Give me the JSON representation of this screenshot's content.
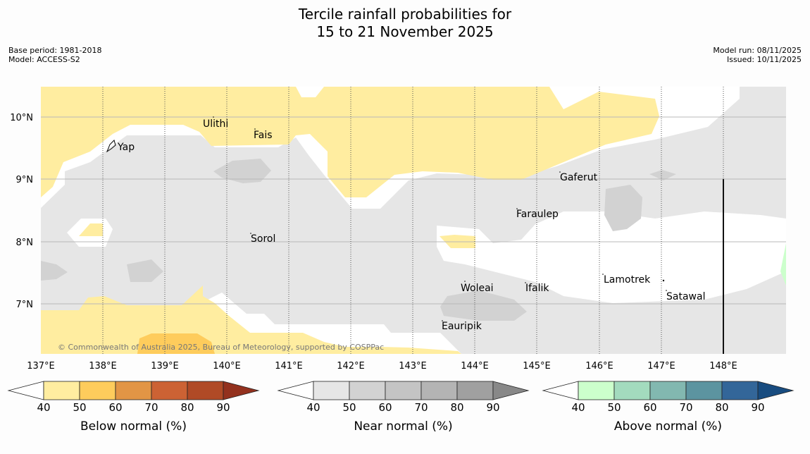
{
  "title": {
    "line1": "Tercile rainfall probabilities for",
    "line2": "15 to 21 November 2025"
  },
  "meta_left": {
    "base_period": "Base period: 1981-2018",
    "model": "Model: ACCESS-S2"
  },
  "meta_right": {
    "model_run": "Model run: 08/11/2025",
    "issued": "Issued: 10/11/2025"
  },
  "map": {
    "lon_labels": [
      "137°E",
      "138°E",
      "139°E",
      "140°E",
      "141°E",
      "142°E",
      "143°E",
      "144°E",
      "145°E",
      "146°E",
      "147°E",
      "148°E"
    ],
    "lat_labels": [
      "10°N",
      "9°N",
      "8°N",
      "7°N"
    ],
    "places": [
      "Ulithi",
      "Fais",
      "Yap",
      "Gaferut",
      "Faraulep",
      "Sorol",
      "Lamotrek",
      "Woleai",
      "Ifalik",
      "Satawal",
      "Eauripik"
    ],
    "copyright": "© Commonwealth of Australia 2025, Bureau of Meteorology, supported by COSPPac"
  },
  "colors": {
    "below": [
      "#ffeda0",
      "#fecc5c",
      "#e29545",
      "#cc6234",
      "#b04a26",
      "#93311e"
    ],
    "near": [
      "#e6e6e6",
      "#d2d2d2",
      "#c4c4c4",
      "#b4b4b4",
      "#a0a0a0",
      "#888888"
    ],
    "above": [
      "#ccffcc",
      "#a3dbbe",
      "#82b8b0",
      "#5c94a0",
      "#336699",
      "#184c80"
    ]
  },
  "legends": [
    {
      "title": "Below normal (%)",
      "ticks": [
        "40",
        "50",
        "60",
        "70",
        "80",
        "90"
      ]
    },
    {
      "title": "Near normal (%)",
      "ticks": [
        "40",
        "50",
        "60",
        "70",
        "80",
        "90"
      ]
    },
    {
      "title": "Above normal (%)",
      "ticks": [
        "40",
        "50",
        "60",
        "70",
        "80",
        "90"
      ]
    }
  ]
}
